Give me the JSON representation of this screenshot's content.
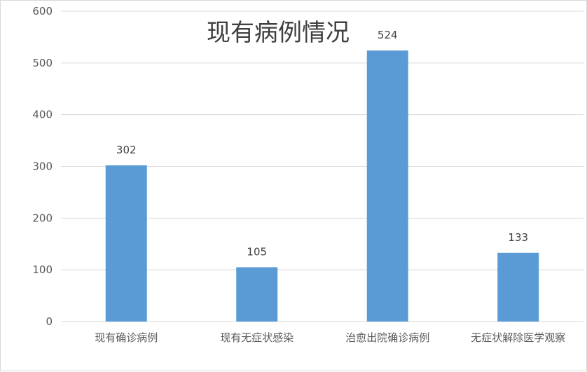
{
  "chart_data": {
    "type": "bar",
    "title": "现有病例情况",
    "categories": [
      "现有确诊病例",
      "现有无症状感染",
      "治愈出院确诊病例",
      "无症状解除医学观察"
    ],
    "values": [
      302,
      105,
      524,
      133
    ],
    "data_labels": [
      "302",
      "105",
      "524",
      "133"
    ],
    "ylim": [
      0,
      600
    ],
    "yticks": [
      0,
      100,
      200,
      300,
      400,
      500,
      600
    ],
    "grid": true,
    "legend": "none",
    "bar_color": "#5b9bd5"
  }
}
